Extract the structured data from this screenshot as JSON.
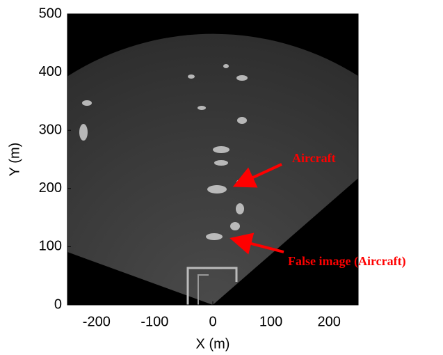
{
  "chart_data": {
    "type": "image",
    "xlabel": "X (m)",
    "ylabel": "Y (m)",
    "xlim": [
      -250,
      250
    ],
    "ylim": [
      0,
      500
    ],
    "xticks": [
      -200,
      -100,
      0,
      100,
      200
    ],
    "yticks": [
      0,
      100,
      200,
      300,
      400,
      500
    ],
    "annotations": [
      {
        "text": "Aircraft"
      },
      {
        "text": "False image (Aircraft)"
      }
    ]
  }
}
